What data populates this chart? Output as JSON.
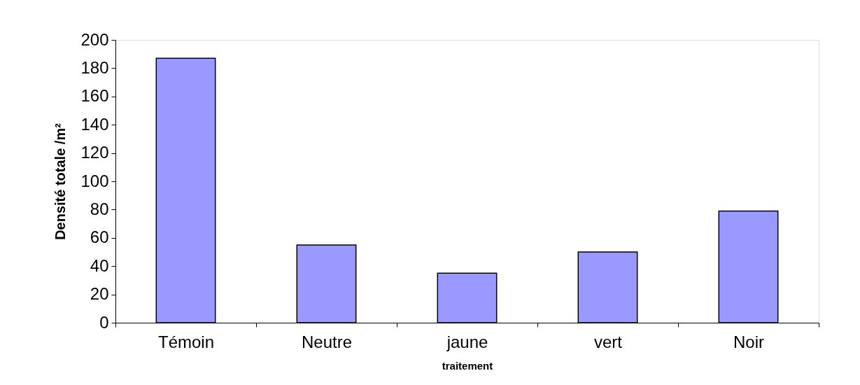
{
  "chart_data": {
    "type": "bar",
    "categories": [
      "Témoin",
      "Neutre",
      "jaune",
      "vert",
      "Noir"
    ],
    "values": [
      187,
      55,
      35,
      50,
      79
    ],
    "color": "#9999ff",
    "xlabel": "traitement",
    "ylabel": "Densité totale /m²",
    "ylim": [
      0,
      200
    ],
    "yticks": [
      0,
      20,
      40,
      60,
      80,
      100,
      120,
      140,
      160,
      180,
      200
    ]
  }
}
